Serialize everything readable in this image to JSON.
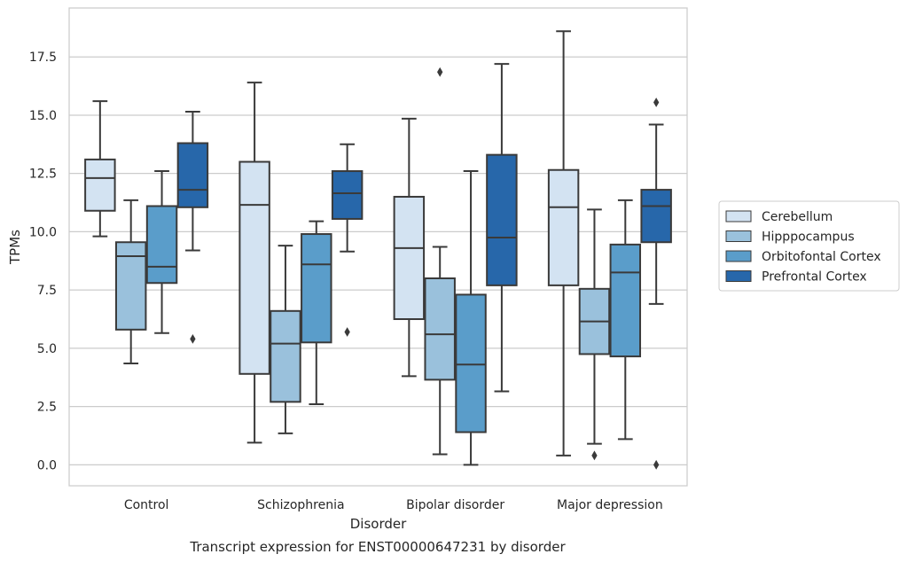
{
  "chart_data": {
    "type": "box",
    "title": "",
    "caption": "Transcript expression for ENST00000647231 by disorder",
    "xlabel": "Disorder",
    "ylabel": "TPMs",
    "ylim": [
      -0.9,
      19.6
    ],
    "yticks": [
      "0.0",
      "2.5",
      "5.0",
      "7.5",
      "10.0",
      "12.5",
      "15.0",
      "17.5"
    ],
    "ytick_values": [
      0,
      2.5,
      5,
      7.5,
      10,
      12.5,
      15,
      17.5
    ],
    "grid": true,
    "legend_position": "right",
    "categories": [
      "Control",
      "Schizophrenia",
      "Bipolar disorder",
      "Major depression"
    ],
    "series": [
      {
        "name": "Cerebellum",
        "color": "#d3e3f2",
        "boxes": [
          {
            "whislo": 9.8,
            "q1": 10.9,
            "med": 12.3,
            "q3": 13.1,
            "whishi": 15.6,
            "fliers": []
          },
          {
            "whislo": 0.95,
            "q1": 3.9,
            "med": 11.15,
            "q3": 13.0,
            "whishi": 16.4,
            "fliers": []
          },
          {
            "whislo": 3.8,
            "q1": 6.25,
            "med": 9.3,
            "q3": 11.5,
            "whishi": 14.85,
            "fliers": []
          },
          {
            "whislo": 0.4,
            "q1": 7.7,
            "med": 11.05,
            "q3": 12.65,
            "whishi": 18.6,
            "fliers": []
          }
        ]
      },
      {
        "name": "Hipppocampus",
        "color": "#9ac1dc",
        "boxes": [
          {
            "whislo": 4.35,
            "q1": 5.8,
            "med": 8.95,
            "q3": 9.55,
            "whishi": 11.35,
            "fliers": []
          },
          {
            "whislo": 1.35,
            "q1": 2.7,
            "med": 5.2,
            "q3": 6.6,
            "whishi": 9.4,
            "fliers": []
          },
          {
            "whislo": 0.45,
            "q1": 3.65,
            "med": 5.6,
            "q3": 8.0,
            "whishi": 9.35,
            "fliers": [
              16.85
            ]
          },
          {
            "whislo": 0.9,
            "q1": 4.75,
            "med": 6.15,
            "q3": 7.55,
            "whishi": 10.95,
            "fliers": [
              0.4
            ]
          }
        ]
      },
      {
        "name": "Orbitofontal Cortex",
        "color": "#5a9dca",
        "boxes": [
          {
            "whislo": 5.65,
            "q1": 7.8,
            "med": 8.5,
            "q3": 11.1,
            "whishi": 12.6,
            "fliers": []
          },
          {
            "whislo": 2.6,
            "q1": 5.25,
            "med": 8.6,
            "q3": 9.9,
            "whishi": 10.45,
            "fliers": []
          },
          {
            "whislo": 0.0,
            "q1": 1.4,
            "med": 4.3,
            "q3": 7.3,
            "whishi": 12.6,
            "fliers": []
          },
          {
            "whislo": 1.1,
            "q1": 4.65,
            "med": 8.25,
            "q3": 9.45,
            "whishi": 11.35,
            "fliers": []
          }
        ]
      },
      {
        "name": "Prefrontal Cortex",
        "color": "#2767aa",
        "boxes": [
          {
            "whislo": 9.2,
            "q1": 11.05,
            "med": 11.8,
            "q3": 13.8,
            "whishi": 15.15,
            "fliers": [
              5.4
            ]
          },
          {
            "whislo": 9.15,
            "q1": 10.55,
            "med": 11.65,
            "q3": 12.6,
            "whishi": 13.75,
            "fliers": [
              5.7
            ]
          },
          {
            "whislo": 3.15,
            "q1": 7.7,
            "med": 9.75,
            "q3": 13.3,
            "whishi": 17.2,
            "fliers": []
          },
          {
            "whislo": 6.9,
            "q1": 9.55,
            "med": 11.1,
            "q3": 11.8,
            "whishi": 14.6,
            "fliers": [
              15.55,
              0.0
            ]
          }
        ]
      }
    ]
  }
}
